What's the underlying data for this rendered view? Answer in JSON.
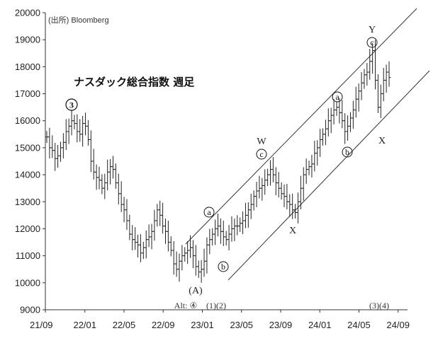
{
  "chart_data": {
    "type": "line",
    "title": "ナスダック総合指数 週足",
    "source": "(出所) Bloomberg",
    "ylim": [
      9000,
      20000
    ],
    "y_ticks": [
      9000,
      10000,
      11000,
      12000,
      13000,
      14000,
      15000,
      16000,
      17000,
      18000,
      19000,
      20000
    ],
    "x_tick_labels": [
      "21/09",
      "22/01",
      "22/05",
      "22/09",
      "23/01",
      "23/05",
      "23/09",
      "24/01",
      "24/05",
      "24/09"
    ],
    "grid": false,
    "series": [
      {
        "values": [
          15400,
          15000,
          14900,
          14600,
          14700,
          15000,
          15200,
          15600,
          15800,
          16000,
          15900,
          15600,
          15500,
          15900,
          15800,
          15300,
          14500,
          14100,
          13900,
          13800,
          13500,
          13700,
          14100,
          14300,
          14200,
          13700,
          13300,
          12900,
          12700,
          12300,
          11800,
          11600,
          11500,
          11400,
          11100,
          11300,
          11600,
          11700,
          11900,
          12300,
          12700,
          12500,
          12100,
          11900,
          11500,
          11200,
          10700,
          10500,
          10800,
          11000,
          11100,
          11200,
          11300,
          11000,
          10600,
          10400,
          10500,
          10800,
          11400,
          11600,
          11800,
          12000,
          12100,
          11900,
          11700,
          11600,
          11800,
          12000,
          12100,
          12100,
          12200,
          12300,
          12500,
          12700,
          12900,
          13200,
          13400,
          13500,
          13600,
          13800,
          14000,
          14200,
          14000,
          13700,
          13500,
          13300,
          13200,
          13000,
          12900,
          12700,
          12600,
          13000,
          13500,
          14000,
          14200,
          14300,
          14400,
          14800,
          15000,
          15300,
          15500,
          15700,
          16000,
          16200,
          16400,
          16500,
          16300,
          16000,
          15600,
          15800,
          16100,
          16400,
          16800,
          17100,
          17400,
          17700,
          17800,
          18200,
          18600,
          17500,
          16500,
          17000,
          17500,
          17800,
          17600
        ]
      }
    ],
    "channel": "parallel trend channel from 23/01 to 24/09",
    "annotations": {
      "wave3": "3",
      "wave_A": "(A)",
      "alt4": "Alt: ④",
      "wave12": "(1)(2)",
      "wave34": "(3)(4)",
      "a1": "a",
      "b1": "b",
      "c1": "c",
      "a2": "a",
      "b2": "b",
      "c2": "c",
      "W": "W",
      "X1": "X",
      "X2": "X",
      "Y": "Y"
    }
  }
}
